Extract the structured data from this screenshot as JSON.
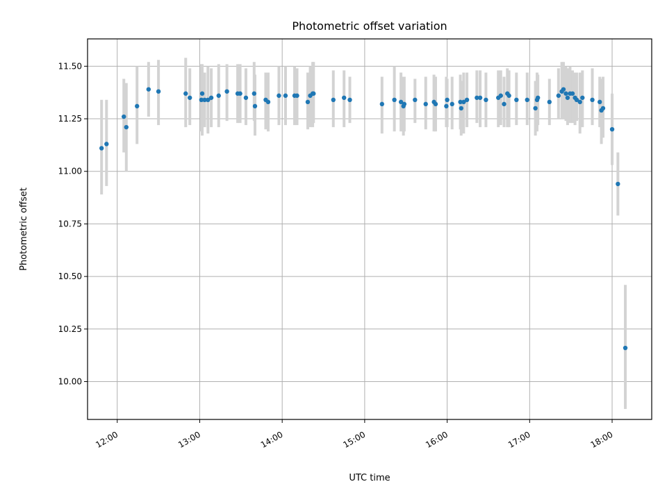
{
  "chart_data": {
    "type": "scatter",
    "title": "Photometric offset variation",
    "xlabel": "UTC time",
    "ylabel": "Photometric offset",
    "x_tick_labels": [
      "12:00",
      "13:00",
      "14:00",
      "15:00",
      "16:00",
      "17:00",
      "18:00"
    ],
    "x_ticks_hours": [
      12,
      13,
      14,
      15,
      16,
      17,
      18
    ],
    "y_ticks": [
      10.0,
      10.25,
      10.5,
      10.75,
      11.0,
      11.25,
      11.5
    ],
    "y_tick_labels": [
      "10.00",
      "10.25",
      "10.50",
      "10.75",
      "11.00",
      "11.25",
      "11.50"
    ],
    "xlim_hours": [
      11.64,
      18.48
    ],
    "ylim": [
      9.82,
      11.63
    ],
    "grid": true,
    "series": [
      {
        "marker_color": "#1f77b4",
        "errorbar_color": "#d3d3d3",
        "x_hours": [
          11.81,
          11.87,
          12.08,
          12.11,
          12.24,
          12.38,
          12.5,
          12.83,
          12.88,
          13.02,
          13.03,
          13.06,
          13.1,
          13.14,
          13.23,
          13.33,
          13.46,
          13.49,
          13.56,
          13.66,
          13.67,
          13.8,
          13.83,
          13.96,
          14.04,
          14.15,
          14.18,
          14.31,
          14.34,
          14.37,
          14.38,
          14.62,
          14.75,
          14.82,
          15.21,
          15.36,
          15.44,
          15.47,
          15.48,
          15.61,
          15.74,
          15.84,
          15.86,
          15.99,
          16.0,
          16.06,
          16.16,
          16.17,
          16.2,
          16.24,
          16.36,
          16.4,
          16.47,
          16.62,
          16.65,
          16.69,
          16.73,
          16.75,
          16.84,
          16.97,
          17.07,
          17.09,
          17.1,
          17.24,
          17.35,
          17.39,
          17.41,
          17.44,
          17.46,
          17.49,
          17.52,
          17.55,
          17.57,
          17.61,
          17.64,
          17.76,
          17.85,
          17.87,
          17.89,
          18.0,
          18.07,
          18.16
        ],
        "y": [
          11.11,
          11.13,
          11.26,
          11.21,
          11.31,
          11.39,
          11.38,
          11.37,
          11.35,
          11.34,
          11.37,
          11.34,
          11.34,
          11.35,
          11.36,
          11.38,
          11.37,
          11.37,
          11.35,
          11.37,
          11.31,
          11.34,
          11.33,
          11.36,
          11.36,
          11.36,
          11.36,
          11.33,
          11.36,
          11.37,
          11.37,
          11.34,
          11.35,
          11.34,
          11.32,
          11.34,
          11.33,
          11.31,
          11.32,
          11.34,
          11.32,
          11.33,
          11.32,
          11.31,
          11.34,
          11.32,
          11.33,
          11.3,
          11.33,
          11.34,
          11.35,
          11.35,
          11.34,
          11.35,
          11.36,
          11.32,
          11.37,
          11.36,
          11.34,
          11.34,
          11.3,
          11.34,
          11.35,
          11.33,
          11.36,
          11.38,
          11.39,
          11.37,
          11.35,
          11.37,
          11.37,
          11.35,
          11.34,
          11.33,
          11.35,
          11.34,
          11.33,
          11.29,
          11.3,
          11.2,
          10.94,
          10.16
        ],
        "err_low": [
          10.89,
          10.93,
          11.09,
          11.0,
          11.13,
          11.26,
          11.22,
          11.21,
          11.22,
          11.19,
          11.17,
          11.21,
          11.18,
          11.21,
          11.21,
          11.24,
          11.23,
          11.23,
          11.22,
          11.24,
          11.17,
          11.2,
          11.19,
          11.22,
          11.22,
          11.22,
          11.22,
          11.2,
          11.21,
          11.21,
          11.23,
          11.21,
          11.21,
          11.23,
          11.18,
          11.19,
          11.19,
          11.17,
          11.19,
          11.23,
          11.2,
          11.19,
          11.19,
          11.21,
          11.21,
          11.2,
          11.2,
          11.17,
          11.18,
          11.21,
          11.23,
          11.21,
          11.21,
          11.21,
          11.22,
          11.21,
          11.21,
          11.21,
          11.22,
          11.22,
          11.17,
          11.19,
          11.22,
          11.22,
          11.25,
          11.25,
          11.25,
          11.24,
          11.22,
          11.23,
          11.23,
          11.22,
          11.24,
          11.18,
          11.21,
          11.22,
          11.21,
          11.13,
          11.16,
          11.03,
          10.79,
          9.87
        ],
        "err_high": [
          11.34,
          11.34,
          11.44,
          11.42,
          11.5,
          11.52,
          11.53,
          11.54,
          11.49,
          11.51,
          11.51,
          11.47,
          11.5,
          11.49,
          11.51,
          11.51,
          11.51,
          11.51,
          11.49,
          11.52,
          11.46,
          11.47,
          11.47,
          11.5,
          11.5,
          11.5,
          11.49,
          11.47,
          11.5,
          11.52,
          11.52,
          11.48,
          11.48,
          11.45,
          11.45,
          11.5,
          11.47,
          11.45,
          11.45,
          11.44,
          11.45,
          11.46,
          11.45,
          11.45,
          11.44,
          11.45,
          11.46,
          11.43,
          11.47,
          11.47,
          11.48,
          11.48,
          11.47,
          11.48,
          11.48,
          11.45,
          11.49,
          11.48,
          11.47,
          11.47,
          11.43,
          11.47,
          11.46,
          11.44,
          11.49,
          11.52,
          11.52,
          11.5,
          11.49,
          11.5,
          11.48,
          11.47,
          11.47,
          11.47,
          11.48,
          11.49,
          11.45,
          11.44,
          11.45,
          11.37,
          11.09,
          10.46
        ]
      }
    ]
  }
}
